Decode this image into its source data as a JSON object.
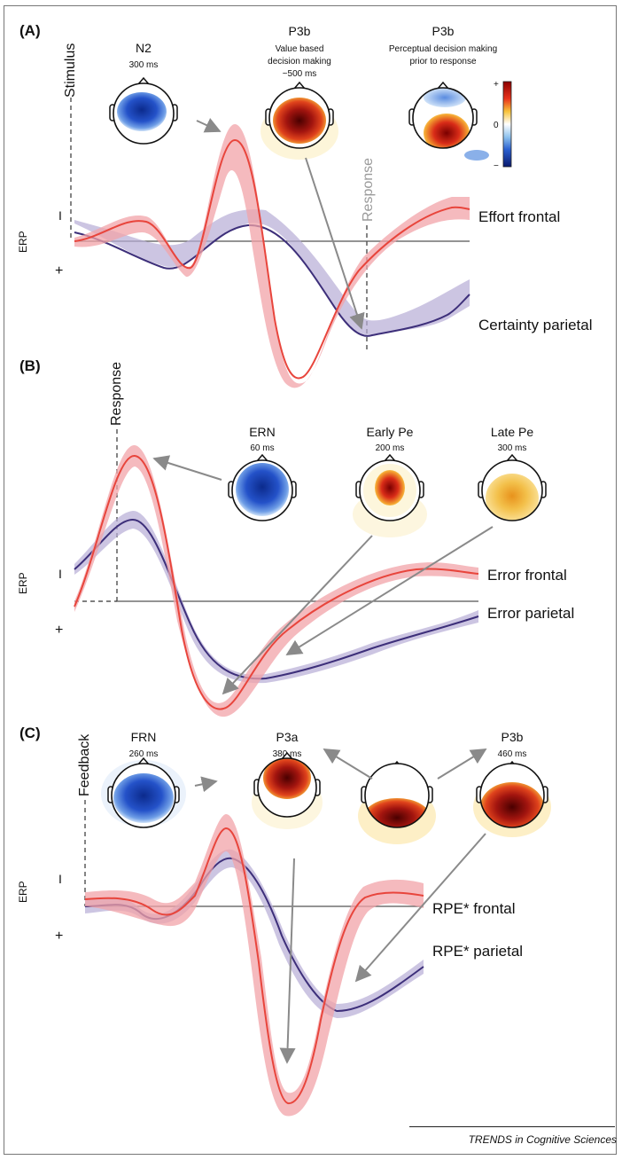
{
  "panels": {
    "a": {
      "label": "(A)",
      "event_label": "Stimulus",
      "event2_label": "Response",
      "y_axis": {
        "label": "ERP",
        "neg": "I",
        "pos": "+"
      },
      "maps": [
        {
          "title": "N2",
          "time": "300 ms"
        },
        {
          "title": "P3b",
          "desc1": "Value based",
          "desc2": "decision making",
          "time": "~500 ms"
        },
        {
          "title": "P3b",
          "desc1": "Perceptual decision making",
          "desc2": "prior to response"
        }
      ],
      "colorbar": {
        "top": "+",
        "mid": "0",
        "bottom": "−"
      },
      "legend": {
        "red": "Effort frontal",
        "purple": "Certainty parietal"
      }
    },
    "b": {
      "label": "(B)",
      "event_label": "Response",
      "y_axis": {
        "label": "ERP",
        "neg": "I",
        "pos": "+"
      },
      "maps": [
        {
          "title": "ERN",
          "time": "60 ms"
        },
        {
          "title": "Early Pe",
          "time": "200 ms"
        },
        {
          "title": "Late Pe",
          "time": "300 ms"
        }
      ],
      "legend": {
        "red": "Error frontal",
        "purple": "Error parietal"
      }
    },
    "c": {
      "label": "(C)",
      "event_label": "Feedback",
      "y_axis": {
        "label": "ERP",
        "neg": "I",
        "pos": "+"
      },
      "maps": [
        {
          "title": "FRN",
          "time": "260 ms"
        },
        {
          "title": "P3a",
          "time": "380 ms"
        },
        {
          "title": "P3b",
          "time": "460 ms"
        }
      ],
      "legend": {
        "red": "RPE* frontal",
        "purple": "RPE* parietal"
      }
    }
  },
  "footer": "TRENDS in Cognitive Sciences",
  "colors": {
    "frontal": "#e8453c",
    "frontal_band": "#f2a3a8",
    "parietal": "#3d2f7a",
    "parietal_band": "#b6acd6",
    "negative_map": "#1d3fa3",
    "positive_map": "#7a0d0d"
  }
}
